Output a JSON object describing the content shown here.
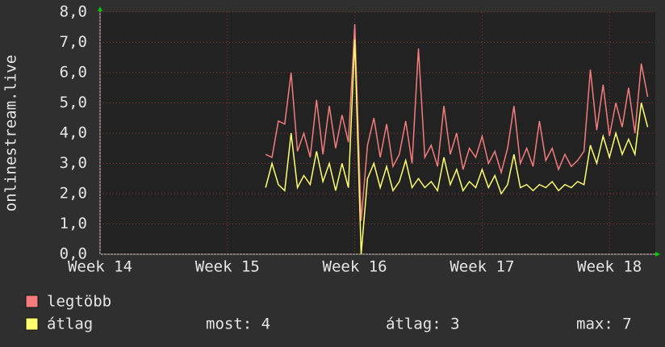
{
  "chart_data": {
    "type": "line",
    "y_label": "onlinestream.live",
    "xlim": [
      14,
      18.36
    ],
    "xticks": [
      {
        "value": 14,
        "label": "Week 14"
      },
      {
        "value": 15,
        "label": "Week 15"
      },
      {
        "value": 16,
        "label": "Week 16"
      },
      {
        "value": 17,
        "label": "Week 17"
      },
      {
        "value": 18,
        "label": "Week 18"
      }
    ],
    "ylim": [
      0,
      8
    ],
    "yticks": [
      {
        "value": 0,
        "label": "0,0"
      },
      {
        "value": 1,
        "label": "1,0"
      },
      {
        "value": 2,
        "label": "2,0"
      },
      {
        "value": 3,
        "label": "3,0"
      },
      {
        "value": 4,
        "label": "4,0"
      },
      {
        "value": 5,
        "label": "5,0"
      },
      {
        "value": 6,
        "label": "6,0"
      },
      {
        "value": 7,
        "label": "7,0"
      },
      {
        "value": 8,
        "label": "8,0"
      }
    ],
    "grid": true,
    "x": [
      15.3,
      15.35,
      15.4,
      15.45,
      15.5,
      15.55,
      15.6,
      15.65,
      15.7,
      15.75,
      15.8,
      15.85,
      15.9,
      15.95,
      16.0,
      16.05,
      16.1,
      16.15,
      16.2,
      16.25,
      16.3,
      16.35,
      16.4,
      16.45,
      16.5,
      16.55,
      16.6,
      16.65,
      16.7,
      16.75,
      16.8,
      16.85,
      16.9,
      16.95,
      17.0,
      17.05,
      17.1,
      17.15,
      17.2,
      17.25,
      17.3,
      17.35,
      17.4,
      17.45,
      17.5,
      17.55,
      17.6,
      17.65,
      17.7,
      17.75,
      17.8,
      17.85,
      17.9,
      17.95,
      18.0,
      18.05,
      18.1,
      18.15,
      18.2,
      18.25,
      18.3
    ],
    "series": [
      {
        "name": "legtöbb",
        "color": "#f47c7c",
        "values": [
          3.3,
          3.2,
          4.4,
          4.3,
          6.0,
          3.4,
          4.0,
          3.2,
          5.1,
          3.3,
          4.9,
          3.5,
          4.6,
          3.7,
          7.6,
          1.1,
          3.6,
          4.5,
          3.2,
          4.3,
          2.9,
          3.3,
          4.4,
          3.0,
          6.8,
          3.2,
          3.6,
          2.9,
          4.9,
          3.3,
          4.0,
          2.8,
          3.5,
          3.2,
          3.9,
          3.0,
          3.4,
          2.7,
          3.5,
          4.9,
          3.0,
          3.5,
          2.9,
          4.4,
          3.1,
          3.5,
          2.8,
          3.3,
          2.9,
          3.1,
          3.4,
          6.1,
          4.1,
          5.6,
          3.9,
          5.0,
          4.2,
          5.5,
          4.0,
          6.3,
          5.2
        ]
      },
      {
        "name": "átlag",
        "color": "#ffff70",
        "values": [
          2.2,
          3.0,
          2.3,
          2.1,
          4.0,
          2.2,
          2.6,
          2.3,
          3.4,
          2.4,
          3.0,
          2.1,
          3.0,
          2.2,
          7.1,
          0.0,
          2.5,
          3.0,
          2.2,
          2.9,
          2.1,
          2.4,
          3.1,
          2.2,
          2.5,
          2.2,
          2.4,
          2.1,
          3.2,
          2.3,
          2.8,
          2.1,
          2.4,
          2.2,
          2.8,
          2.2,
          2.6,
          2.0,
          2.3,
          3.3,
          2.2,
          2.3,
          2.1,
          2.3,
          2.2,
          2.4,
          2.1,
          2.3,
          2.2,
          2.4,
          2.3,
          3.6,
          3.0,
          3.9,
          3.2,
          4.0,
          3.3,
          3.8,
          3.3,
          5.0,
          4.2
        ]
      }
    ],
    "stats": [
      "most: 4",
      "átlag: 3",
      "max: 7"
    ]
  }
}
